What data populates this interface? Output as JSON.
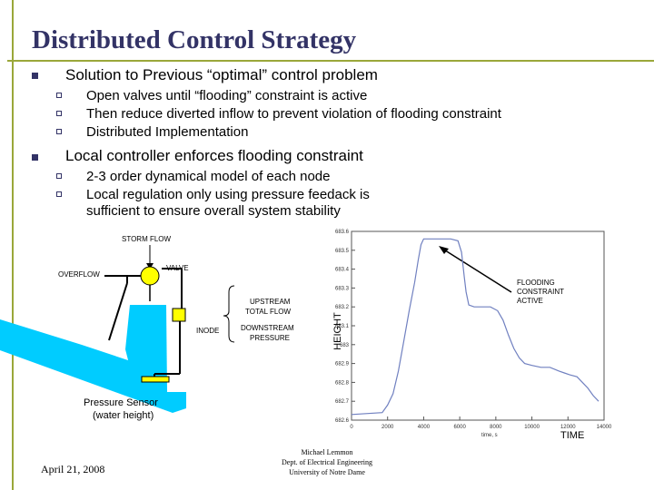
{
  "slide": {
    "title": "Distributed Control Strategy",
    "bullets": [
      {
        "text": "Solution to Previous “optimal” control problem",
        "sub": [
          "Open valves until “flooding” constraint is active",
          "Then reduce diverted inflow to prevent violation of flooding constraint",
          "Distributed Implementation"
        ]
      },
      {
        "text": "Local controller enforces flooding constraint",
        "sub": [
          "2-3 order dynamical model of each node",
          "Local regulation only using pressure feedack is",
          "sufficient to ensure overall system stability"
        ]
      }
    ]
  },
  "diagram": {
    "storm_flow": "STORM FLOW",
    "valve": "VALVE",
    "overflow": "OVERFLOW",
    "upstream_1": "UPSTREAM",
    "upstream_2": "TOTAL FLOW",
    "inode": "INODE",
    "downstream_1": "DOWNSTREAM",
    "downstream_2": "PRESSURE",
    "sensor_1": "Pressure Sensor",
    "sensor_2": "(water height)",
    "water_color": "#00ccff",
    "valve_color": "#ffff00"
  },
  "chart": {
    "ylabel": "HEIGHT",
    "xlabel": "TIME",
    "x_unit": "time, s",
    "annotation": [
      "FLOODING",
      "CONSTRAINT",
      "ACTIVE"
    ],
    "xticks": [
      0,
      2000,
      4000,
      6000,
      8000,
      10000,
      12000,
      14000
    ],
    "yticks": [
      682.6,
      682.7,
      682.8,
      682.9,
      683,
      683.1,
      683.2,
      683.3,
      683.4,
      683.5,
      683.6
    ],
    "xlim": [
      0,
      14000
    ],
    "ylim": [
      682.6,
      683.6
    ],
    "line_color": "#7080c0"
  },
  "chart_data": {
    "type": "line",
    "xlabel": "TIME",
    "ylabel": "HEIGHT",
    "xlim": [
      0,
      14000
    ],
    "ylim": [
      682.6,
      683.6
    ],
    "series": [
      {
        "x": [
          0,
          1700,
          2000,
          2300,
          2600,
          2900,
          3200,
          3500,
          3700,
          3850,
          4000,
          4500,
          5000,
          5500,
          5900,
          6100,
          6250,
          6350,
          6500,
          6800,
          7200,
          7700,
          8100,
          8400,
          8700,
          9000,
          9300,
          9600,
          10000,
          10500,
          11000,
          11500,
          11800,
          12100,
          12500,
          12800,
          13100,
          13400,
          13700
        ],
        "y": [
          682.63,
          682.64,
          682.68,
          682.74,
          682.86,
          683.02,
          683.18,
          683.33,
          683.45,
          683.53,
          683.56,
          683.56,
          683.56,
          683.56,
          683.55,
          683.49,
          683.36,
          683.28,
          683.21,
          683.2,
          683.2,
          683.2,
          683.18,
          683.13,
          683.05,
          682.98,
          682.93,
          682.9,
          682.89,
          682.88,
          682.88,
          682.86,
          682.85,
          682.84,
          682.83,
          682.8,
          682.77,
          682.73,
          682.7
        ]
      }
    ]
  },
  "footer": {
    "date": "April 21, 2008",
    "author": "Michael Lemmon",
    "dept": "Dept. of Electrical Engineering",
    "univ": "University of Notre Dame"
  }
}
